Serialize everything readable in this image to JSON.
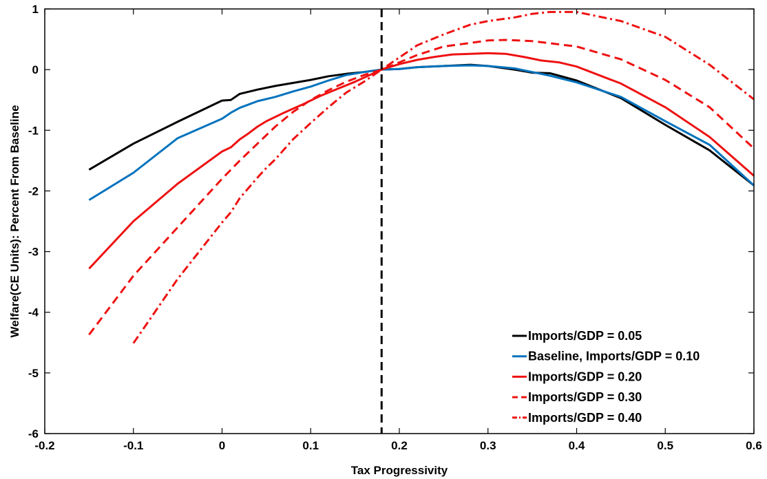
{
  "chart_data": {
    "type": "line",
    "title": "",
    "xlabel": "Tax Progressivity",
    "ylabel": "Welfare(CE Units): Percent From Baseline",
    "xlim": [
      -0.2,
      0.6
    ],
    "ylim": [
      -6,
      1
    ],
    "xticks": [
      -0.2,
      -0.1,
      0,
      0.1,
      0.2,
      0.3,
      0.4,
      0.5,
      0.6
    ],
    "xtick_labels": [
      "-0.2",
      "-0.1",
      "0",
      "0.1",
      "0.2",
      "0.3",
      "0.4",
      "0.5",
      "0.6"
    ],
    "yticks": [
      -6,
      -5,
      -4,
      -3,
      -2,
      -1,
      0,
      1
    ],
    "ytick_labels": [
      "-6",
      "-5",
      "-4",
      "-3",
      "-2",
      "-1",
      "0",
      "1"
    ],
    "grid": false,
    "legend_position": "bottom-right",
    "vline": {
      "x": 0.18,
      "style": "dashed",
      "color": "#000000"
    },
    "series": [
      {
        "name": "Imports/GDP = 0.05",
        "color": "#000000",
        "dash": "solid",
        "x": [
          -0.15,
          -0.1,
          -0.05,
          0,
          0.01,
          0.02,
          0.04,
          0.06,
          0.08,
          0.1,
          0.12,
          0.14,
          0.16,
          0.18,
          0.2,
          0.22,
          0.25,
          0.28,
          0.3,
          0.33,
          0.35,
          0.37,
          0.4,
          0.45,
          0.5,
          0.55,
          0.6
        ],
        "y": [
          -1.65,
          -1.22,
          -0.86,
          -0.51,
          -0.5,
          -0.4,
          -0.33,
          -0.27,
          -0.22,
          -0.17,
          -0.11,
          -0.07,
          -0.04,
          0.0,
          0.01,
          0.04,
          0.06,
          0.08,
          0.06,
          0.0,
          -0.05,
          -0.06,
          -0.18,
          -0.47,
          -0.91,
          -1.33,
          -1.91
        ]
      },
      {
        "name": "Baseline, Imports/GDP = 0.10",
        "color": "#0072BD",
        "dash": "solid",
        "x": [
          -0.15,
          -0.1,
          -0.05,
          0,
          0.01,
          0.02,
          0.04,
          0.06,
          0.08,
          0.1,
          0.12,
          0.14,
          0.16,
          0.18,
          0.2,
          0.22,
          0.25,
          0.28,
          0.3,
          0.33,
          0.35,
          0.37,
          0.4,
          0.45,
          0.5,
          0.55,
          0.6
        ],
        "y": [
          -2.15,
          -1.7,
          -1.13,
          -0.81,
          -0.71,
          -0.63,
          -0.52,
          -0.45,
          -0.36,
          -0.28,
          -0.18,
          -0.09,
          -0.04,
          0.0,
          0.01,
          0.04,
          0.06,
          0.07,
          0.06,
          0.02,
          -0.04,
          -0.1,
          -0.21,
          -0.45,
          -0.85,
          -1.24,
          -1.91
        ]
      },
      {
        "name": "Imports/GDP = 0.20",
        "color": "#EE1111",
        "dash": "solid",
        "x": [
          -0.15,
          -0.1,
          -0.05,
          0,
          0.01,
          0.02,
          0.03,
          0.04,
          0.05,
          0.07,
          0.09,
          0.11,
          0.13,
          0.15,
          0.18,
          0.2,
          0.22,
          0.24,
          0.26,
          0.28,
          0.3,
          0.32,
          0.34,
          0.36,
          0.38,
          0.4,
          0.45,
          0.5,
          0.55,
          0.6
        ],
        "y": [
          -3.28,
          -2.5,
          -1.88,
          -1.35,
          -1.28,
          -1.15,
          -1.05,
          -0.94,
          -0.85,
          -0.71,
          -0.58,
          -0.44,
          -0.32,
          -0.2,
          0.0,
          0.09,
          0.16,
          0.21,
          0.25,
          0.26,
          0.27,
          0.26,
          0.21,
          0.15,
          0.12,
          0.05,
          -0.23,
          -0.62,
          -1.11,
          -1.75
        ]
      },
      {
        "name": "Imports/GDP = 0.30",
        "color": "#EE1111",
        "dash": "dashed",
        "x": [
          -0.15,
          -0.1,
          -0.05,
          0,
          0.02,
          0.04,
          0.06,
          0.08,
          0.1,
          0.12,
          0.14,
          0.16,
          0.18,
          0.2,
          0.22,
          0.25,
          0.28,
          0.3,
          0.32,
          0.35,
          0.4,
          0.45,
          0.5,
          0.55,
          0.6
        ],
        "y": [
          -4.37,
          -3.4,
          -2.6,
          -1.8,
          -1.5,
          -1.22,
          -0.94,
          -0.7,
          -0.5,
          -0.34,
          -0.2,
          -0.09,
          0.0,
          0.12,
          0.24,
          0.38,
          0.44,
          0.48,
          0.49,
          0.47,
          0.38,
          0.17,
          -0.17,
          -0.62,
          -1.3
        ]
      },
      {
        "name": "Imports/GDP = 0.40",
        "color": "#EE1111",
        "dash": "dashdot",
        "x": [
          -0.1,
          -0.05,
          0,
          0.01,
          0.02,
          0.03,
          0.04,
          0.05,
          0.06,
          0.08,
          0.1,
          0.12,
          0.14,
          0.16,
          0.18,
          0.2,
          0.22,
          0.25,
          0.28,
          0.3,
          0.33,
          0.35,
          0.37,
          0.4,
          0.45,
          0.5,
          0.55,
          0.6
        ],
        "y": [
          -4.51,
          -3.45,
          -2.52,
          -2.35,
          -2.12,
          -1.95,
          -1.78,
          -1.62,
          -1.48,
          -1.15,
          -0.88,
          -0.62,
          -0.38,
          -0.2,
          0.0,
          0.2,
          0.4,
          0.58,
          0.74,
          0.8,
          0.86,
          0.92,
          0.95,
          0.95,
          0.8,
          0.54,
          0.08,
          -0.49
        ]
      }
    ]
  }
}
